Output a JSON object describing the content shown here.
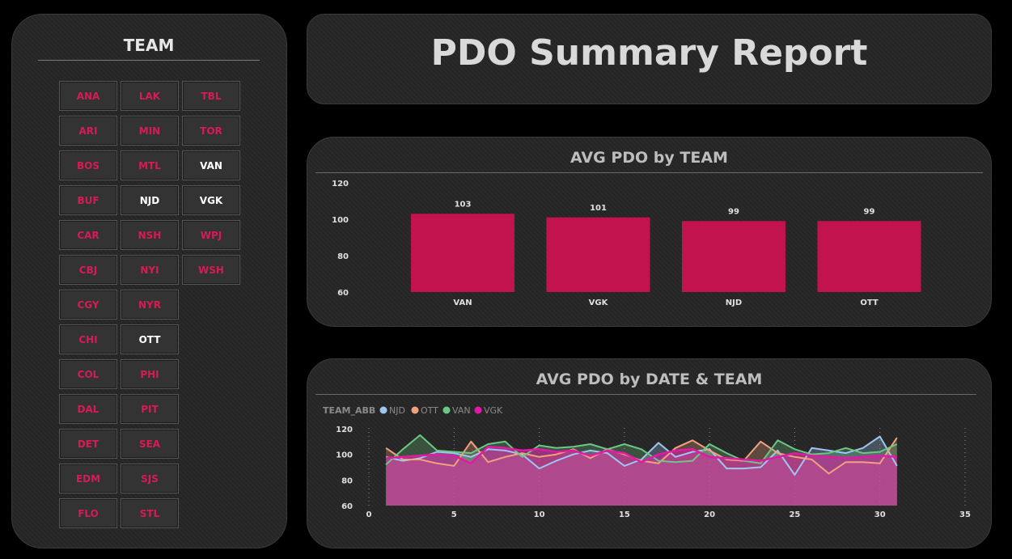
{
  "slicer": {
    "title": "TEAM",
    "columns": [
      [
        {
          "label": "ANA",
          "selected": false
        },
        {
          "label": "ARI",
          "selected": false
        },
        {
          "label": "BOS",
          "selected": false
        },
        {
          "label": "BUF",
          "selected": false
        },
        {
          "label": "CAR",
          "selected": false
        },
        {
          "label": "CBJ",
          "selected": false
        },
        {
          "label": "CGY",
          "selected": false
        },
        {
          "label": "CHI",
          "selected": false
        },
        {
          "label": "COL",
          "selected": false
        },
        {
          "label": "DAL",
          "selected": false
        },
        {
          "label": "DET",
          "selected": false
        },
        {
          "label": "EDM",
          "selected": false
        },
        {
          "label": "FLO",
          "selected": false
        }
      ],
      [
        {
          "label": "LAK",
          "selected": false
        },
        {
          "label": "MIN",
          "selected": false
        },
        {
          "label": "MTL",
          "selected": false
        },
        {
          "label": "NJD",
          "selected": true
        },
        {
          "label": "NSH",
          "selected": false
        },
        {
          "label": "NYI",
          "selected": false
        },
        {
          "label": "NYR",
          "selected": false
        },
        {
          "label": "OTT",
          "selected": true
        },
        {
          "label": "PHI",
          "selected": false
        },
        {
          "label": "PIT",
          "selected": false
        },
        {
          "label": "SEA",
          "selected": false
        },
        {
          "label": "SJS",
          "selected": false
        },
        {
          "label": "STL",
          "selected": false
        }
      ],
      [
        {
          "label": "TBL",
          "selected": false
        },
        {
          "label": "TOR",
          "selected": false
        },
        {
          "label": "VAN",
          "selected": true
        },
        {
          "label": "VGK",
          "selected": true
        },
        {
          "label": "WPJ",
          "selected": false
        },
        {
          "label": "WSH",
          "selected": false
        }
      ]
    ]
  },
  "report": {
    "title": "PDO Summary Report"
  },
  "colors": {
    "accent": "#c2134f",
    "unselected_text": "#d81b55",
    "selected_text": "#ffffff",
    "NJD": "#9ec6f2",
    "OTT": "#f0a27e",
    "VAN": "#6cc784",
    "VGK": "#e11aa6"
  },
  "chart_data": [
    {
      "type": "bar",
      "title": "AVG PDO by TEAM",
      "categories": [
        "VAN",
        "VGK",
        "NJD",
        "OTT"
      ],
      "values": [
        103,
        101,
        99,
        99
      ],
      "data_labels": [
        "103",
        "101",
        "99",
        "99"
      ],
      "ylim": [
        60,
        120
      ],
      "yticks": [
        "60",
        "80",
        "100",
        "120"
      ],
      "xlabel": "",
      "ylabel": "",
      "grid": false
    },
    {
      "type": "area",
      "title": "AVG PDO by DATE & TEAM",
      "legend_title": "TEAM_ABB",
      "legend_position": "top-left",
      "xlim": [
        0,
        35
      ],
      "ylim": [
        60,
        120
      ],
      "xticks": [
        "0",
        "5",
        "10",
        "15",
        "20",
        "25",
        "30",
        "35"
      ],
      "yticks": [
        "60",
        "80",
        "100",
        "120"
      ],
      "grid": "vertical dotted",
      "x": [
        1,
        2,
        3,
        4,
        5,
        6,
        7,
        8,
        9,
        10,
        11,
        12,
        13,
        14,
        15,
        16,
        17,
        18,
        19,
        20,
        21,
        22,
        23,
        24,
        25,
        26,
        27,
        28,
        29,
        30,
        31
      ],
      "series": [
        {
          "name": "NJD",
          "color": "#9ec6f2",
          "values": [
            98,
            95,
            97,
            102,
            101,
            98,
            104,
            103,
            100,
            89,
            95,
            100,
            103,
            101,
            91,
            96,
            109,
            98,
            102,
            104,
            89,
            89,
            90,
            103,
            84,
            105,
            103,
            101,
            105,
            114,
            91
          ]
        },
        {
          "name": "OTT",
          "color": "#f0a27e",
          "values": [
            105,
            96,
            96,
            93,
            91,
            110,
            94,
            98,
            101,
            98,
            100,
            104,
            97,
            104,
            100,
            95,
            93,
            105,
            111,
            103,
            96,
            95,
            110,
            101,
            98,
            96,
            85,
            94,
            94,
            93,
            113
          ]
        },
        {
          "name": "VAN",
          "color": "#6cc784",
          "values": [
            92,
            104,
            115,
            103,
            102,
            101,
            108,
            110,
            98,
            107,
            105,
            106,
            108,
            104,
            108,
            104,
            95,
            94,
            95,
            108,
            101,
            95,
            93,
            111,
            104,
            100,
            101,
            105,
            101,
            102,
            108
          ]
        },
        {
          "name": "VGK",
          "color": "#e11aa6",
          "values": [
            97,
            98,
            99,
            100,
            99,
            93,
            106,
            105,
            103,
            104,
            102,
            103,
            99,
            103,
            101,
            94,
            100,
            103,
            104,
            98,
            97,
            96,
            95,
            98,
            101,
            99,
            98,
            97,
            98,
            99,
            98
          ]
        }
      ]
    }
  ]
}
